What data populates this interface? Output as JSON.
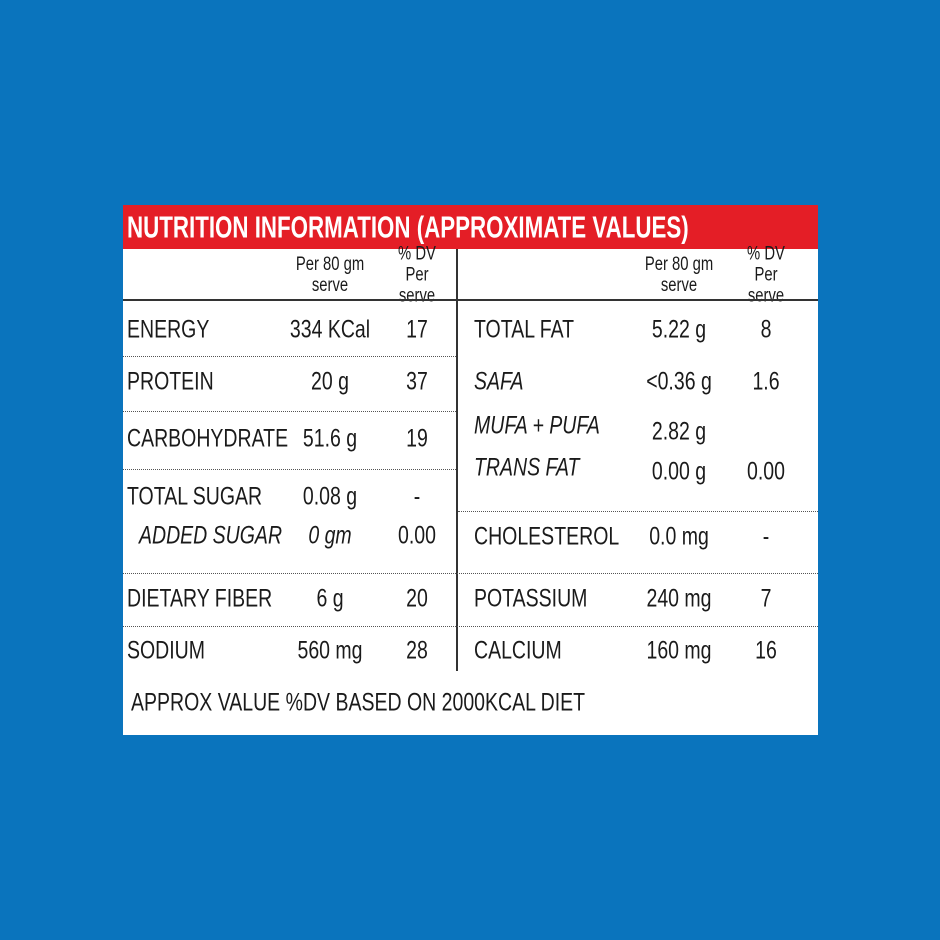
{
  "title": "NUTRITION INFORMATION (APPROXIMATE VALUES)",
  "col_headers": {
    "per_serve": "Per 80 gm serve",
    "dv": "% DV Per serve"
  },
  "left": [
    {
      "name": "ENERGY",
      "value": "334 KCal",
      "dv": "17"
    },
    {
      "name": "PROTEIN",
      "value": "20 g",
      "dv": "37"
    },
    {
      "name": "CARBOHYDRATE",
      "value": "51.6 g",
      "dv": "19"
    },
    {
      "name": "TOTAL SUGAR",
      "value": "0.08 g",
      "dv": "-"
    },
    {
      "name": "ADDED SUGAR",
      "value": "0 gm",
      "dv": "0.00"
    },
    {
      "name": "DIETARY FIBER",
      "value": "6 g",
      "dv": "20"
    },
    {
      "name": "SODIUM",
      "value": "560 mg",
      "dv": "28"
    }
  ],
  "right": [
    {
      "name": "TOTAL FAT",
      "value": "5.22 g",
      "dv": "8"
    },
    {
      "name": "SAFA",
      "value": "<0.36 g",
      "dv": "1.6"
    },
    {
      "name": "MUFA + PUFA",
      "value": "2.82 g",
      "dv": ""
    },
    {
      "name": "TRANS FAT",
      "value": "0.00 g",
      "dv": "0.00"
    },
    {
      "name": "CHOLESTEROL",
      "value": "0.0 mg",
      "dv": "-"
    },
    {
      "name": "POTASSIUM",
      "value": "240 mg",
      "dv": "7"
    },
    {
      "name": "CALCIUM",
      "value": "160 mg",
      "dv": "16"
    }
  ],
  "footer": "APPROX VALUE %DV BASED ON 2000KCAL DIET",
  "colors": {
    "background": "#0a74bd",
    "header": "#e41e26"
  }
}
